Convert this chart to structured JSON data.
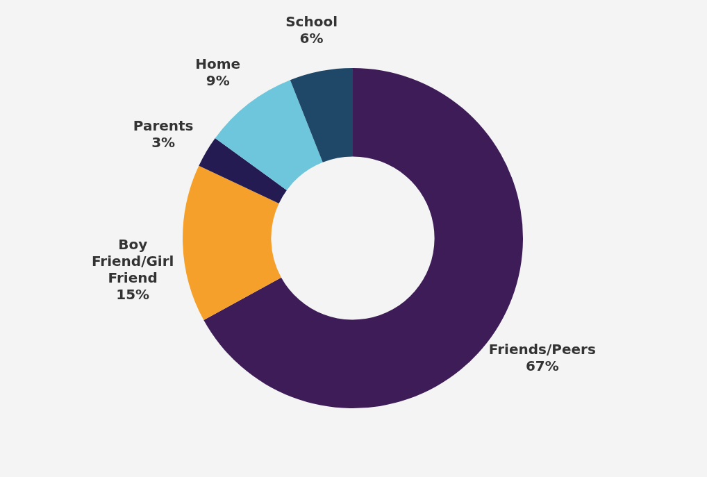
{
  "chart_data": {
    "type": "donut",
    "categories": [
      "Friends/Peers",
      "Boy Friend/Girl Friend",
      "Parents",
      "Home",
      "School"
    ],
    "values": [
      67,
      15,
      3,
      9,
      6
    ],
    "colors": [
      "#3d1c57",
      "#f5a02a",
      "#231b52",
      "#6ec6dc",
      "#1f4868"
    ],
    "value_labels": [
      "67%",
      "15%",
      "3%",
      "9%",
      "6%"
    ],
    "legend": false
  }
}
